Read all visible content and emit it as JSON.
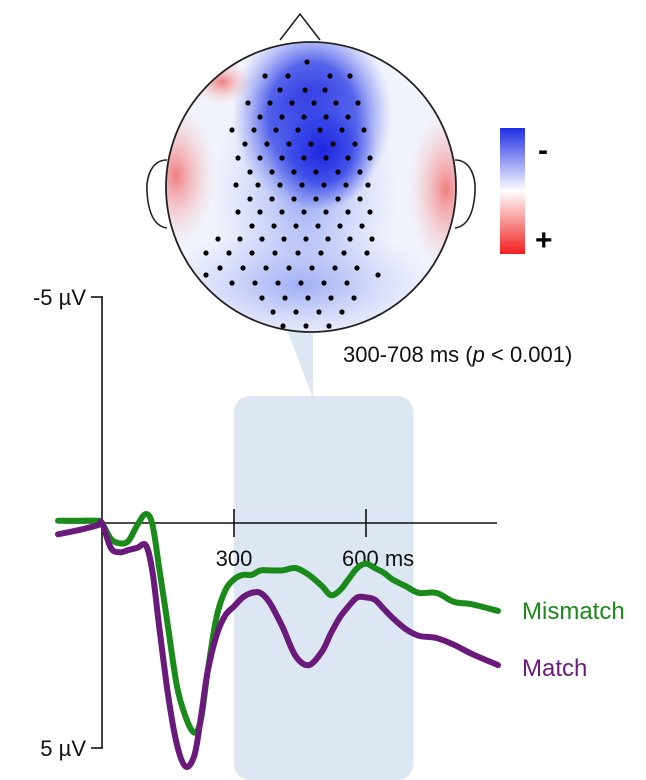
{
  "chart_data": {
    "type": "line",
    "title": "",
    "xlabel": "",
    "ylabel": "",
    "y_axis_inverted": true,
    "ylim": [
      -5,
      5
    ],
    "y_tick_labels": {
      "top": "-5 µV",
      "bottom": "5 µV"
    },
    "x_ticks": [
      300,
      600
    ],
    "x_tick_labels": [
      "300",
      "600 ms"
    ],
    "highlight_window": {
      "start": 300,
      "end": 708,
      "label": "300-708 ms (p < 0.001)",
      "label_parts": [
        "300-708 ms (",
        "p",
        " < 0.001)"
      ]
    },
    "series": [
      {
        "name": "Mismatch",
        "color": "#1a8a1a",
        "x": [
          -100,
          -50,
          -10,
          0,
          20,
          40,
          60,
          80,
          100,
          115,
          130,
          150,
          170,
          190,
          210,
          225,
          240,
          260,
          280,
          300,
          320,
          340,
          360,
          380,
          410,
          440,
          470,
          500,
          520,
          540,
          560,
          580,
          600,
          620,
          640,
          660,
          690,
          720,
          760,
          800,
          840,
          900
        ],
        "values": [
          -0.05,
          -0.05,
          -0.05,
          0,
          0.35,
          0.45,
          0.4,
          0.05,
          -0.2,
          0.05,
          1.0,
          2.3,
          3.6,
          4.3,
          4.65,
          4.35,
          3.3,
          2.1,
          1.5,
          1.25,
          1.15,
          1.15,
          1.05,
          1.05,
          1.05,
          1.0,
          1.15,
          1.4,
          1.6,
          1.5,
          1.25,
          1.0,
          0.9,
          1.0,
          1.1,
          1.25,
          1.4,
          1.55,
          1.55,
          1.75,
          1.8,
          1.95
        ]
      },
      {
        "name": "Match",
        "color": "#6a1a7a",
        "x": [
          -100,
          -50,
          -10,
          0,
          20,
          40,
          60,
          80,
          100,
          115,
          130,
          150,
          170,
          190,
          210,
          225,
          240,
          260,
          280,
          300,
          320,
          340,
          360,
          380,
          410,
          440,
          470,
          500,
          520,
          540,
          560,
          580,
          600,
          620,
          640,
          660,
          690,
          720,
          760,
          800,
          840,
          900
        ],
        "values": [
          0.25,
          0.15,
          0.05,
          0,
          0.55,
          0.65,
          0.6,
          0.55,
          0.5,
          1.1,
          2.3,
          3.8,
          4.9,
          5.4,
          5.15,
          4.3,
          3.3,
          2.5,
          2.05,
          1.85,
          1.65,
          1.55,
          1.55,
          1.75,
          2.3,
          2.95,
          3.15,
          2.85,
          2.45,
          2.1,
          1.85,
          1.65,
          1.65,
          1.7,
          1.9,
          2.1,
          2.35,
          2.5,
          2.55,
          2.7,
          2.9,
          3.15
        ]
      }
    ]
  },
  "topomap": {
    "colorbar": {
      "top_label": "-",
      "bottom_label": "+",
      "colors": {
        "negative": "#1f2ee6",
        "neutral": "#ffffff",
        "positive": "#f21f1f"
      }
    }
  }
}
